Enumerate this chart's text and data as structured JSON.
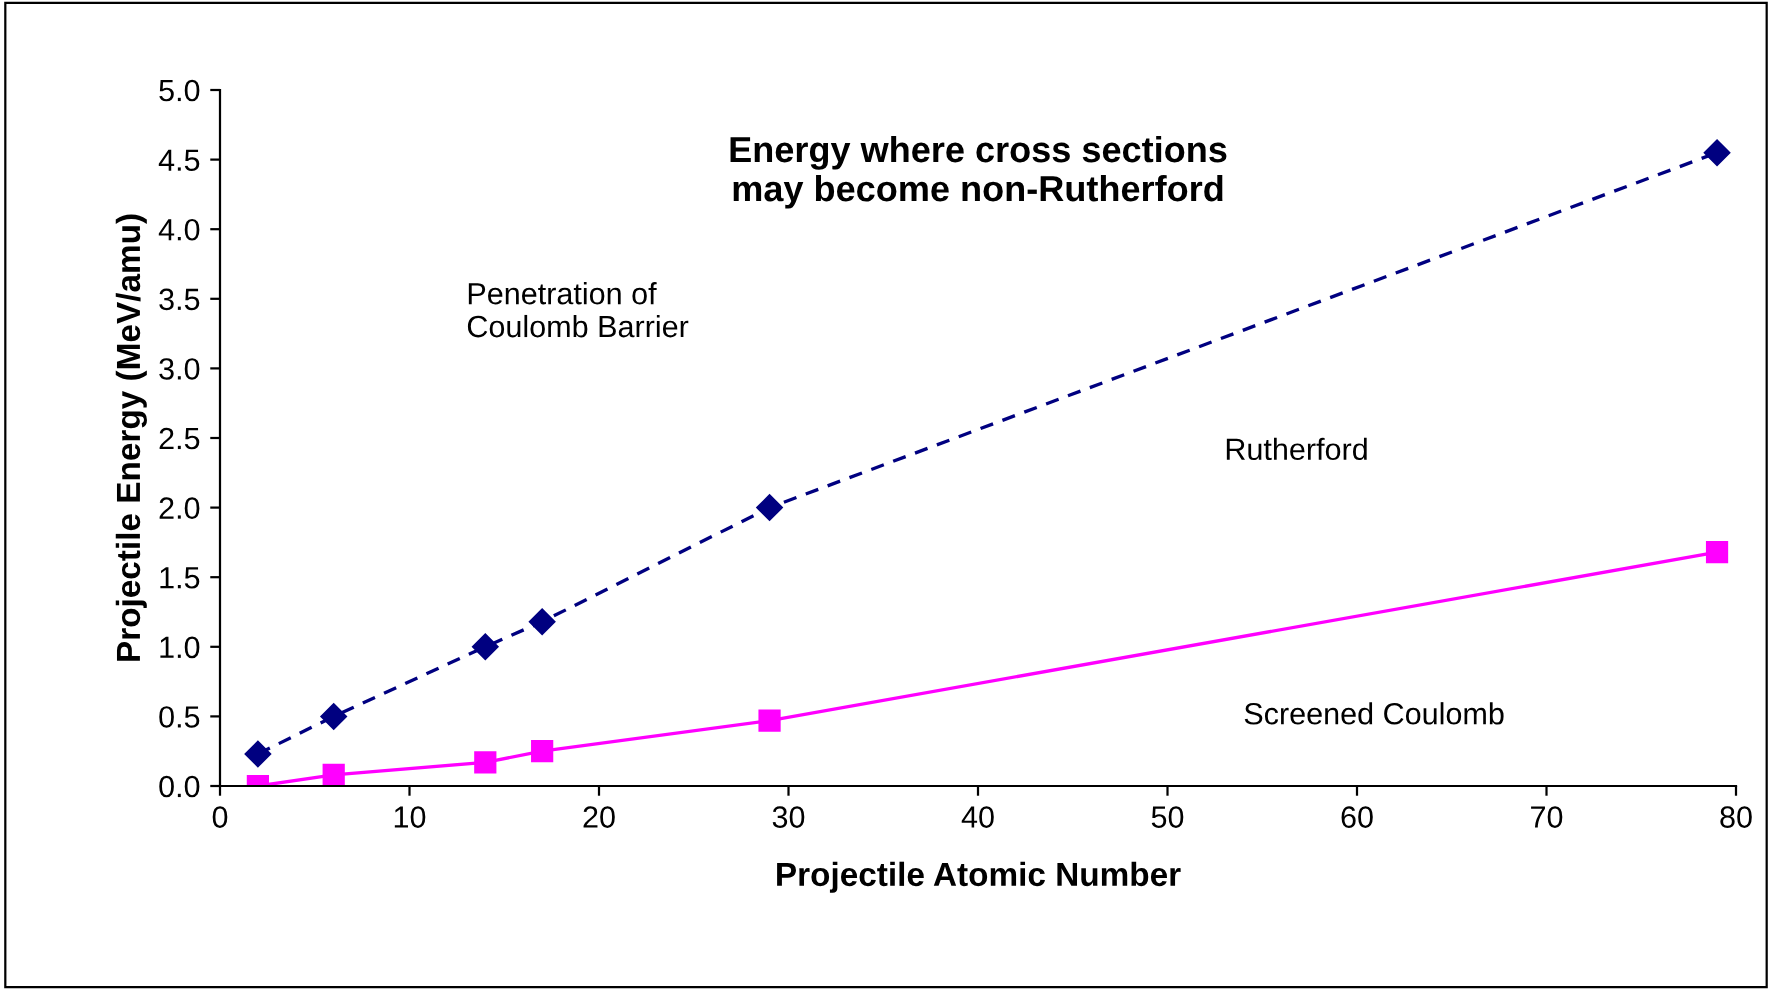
{
  "chart_data": {
    "type": "line",
    "title": "Energy where cross sections\nmay become non-Rutherford",
    "xlabel": "Projectile Atomic Number",
    "ylabel": "Projectile Energy (MeV/amu)",
    "series": [
      {
        "x": [
          2,
          6,
          14,
          17,
          29,
          79
        ],
        "values": [
          0.23,
          0.5,
          1.0,
          1.18,
          2.0,
          4.55
        ],
        "color": "#000080",
        "marker": "diamond",
        "line_style": "dashed"
      },
      {
        "x": [
          2,
          6,
          14,
          17,
          29,
          79
        ],
        "values": [
          0.0,
          0.08,
          0.17,
          0.25,
          0.47,
          1.68
        ],
        "color": "#ff00ff",
        "marker": "square",
        "line_style": "solid"
      }
    ],
    "annotations": [
      "Penetration of\nCoulomb Barrier",
      "Rutherford",
      "Screened Coulomb"
    ],
    "xlim": [
      0,
      80
    ],
    "xticks": [
      0,
      10,
      20,
      30,
      40,
      50,
      60,
      70,
      80
    ],
    "ylim": [
      0,
      5
    ],
    "yticks": [
      {
        "value": 0,
        "label": "0.0"
      },
      {
        "value": 0.5,
        "label": "0.5"
      },
      {
        "value": 1,
        "label": "1.0"
      },
      {
        "value": 1.5,
        "label": "1.5"
      },
      {
        "value": 2,
        "label": "2.0"
      },
      {
        "value": 2.5,
        "label": "2.5"
      },
      {
        "value": 3,
        "label": "3.0"
      },
      {
        "value": 3.5,
        "label": "3.5"
      },
      {
        "value": 4,
        "label": "4.0"
      },
      {
        "value": 4.5,
        "label": "4.5"
      },
      {
        "value": 5,
        "label": "5.0"
      }
    ],
    "grid": false,
    "legend": false
  }
}
